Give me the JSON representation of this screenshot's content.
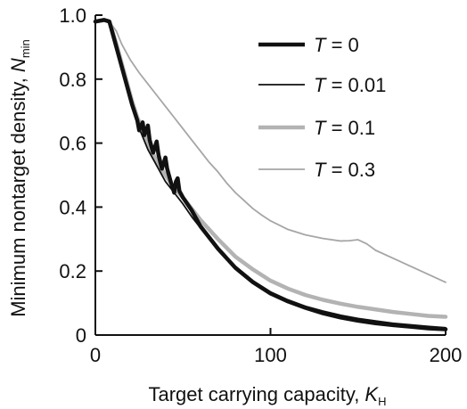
{
  "chart_data": {
    "type": "line",
    "x_axis": {
      "label_text": "Target carrying capacity, ",
      "label_var": "K",
      "label_sub": "H",
      "range": [
        0,
        200
      ],
      "ticks": [
        0,
        100,
        200
      ],
      "tick_labels": [
        "0",
        "100",
        "200"
      ]
    },
    "y_axis": {
      "label_text": "Minimum nontarget density, ",
      "label_var": "N",
      "label_sub": "min",
      "range": [
        0,
        1.0
      ],
      "ticks": [
        0,
        0.2,
        0.4,
        0.6,
        0.8,
        1.0
      ],
      "tick_labels": [
        "0",
        "0.2",
        "0.4",
        "0.6",
        "0.8",
        "1.0"
      ]
    },
    "grid": false,
    "legend_position": "top-right",
    "series": [
      {
        "name": "T = 0",
        "legend_var": "T",
        "legend_value": "= 0",
        "color": "#111111",
        "width": "thick",
        "points": [
          [
            0,
            0.98
          ],
          [
            5,
            0.985
          ],
          [
            8,
            0.98
          ],
          [
            12,
            0.9
          ],
          [
            15,
            0.84
          ],
          [
            18,
            0.78
          ],
          [
            21,
            0.72
          ],
          [
            24,
            0.67
          ],
          [
            25,
            0.64
          ],
          [
            27,
            0.665
          ],
          [
            28,
            0.625
          ],
          [
            30,
            0.655
          ],
          [
            31,
            0.61
          ],
          [
            33,
            0.57
          ],
          [
            35,
            0.605
          ],
          [
            36,
            0.565
          ],
          [
            38,
            0.52
          ],
          [
            40,
            0.555
          ],
          [
            41,
            0.52
          ],
          [
            43,
            0.48
          ],
          [
            45,
            0.445
          ],
          [
            46,
            0.48
          ],
          [
            47,
            0.49
          ],
          [
            48,
            0.45
          ],
          [
            50,
            0.43
          ],
          [
            55,
            0.39
          ],
          [
            60,
            0.34
          ],
          [
            70,
            0.27
          ],
          [
            80,
            0.21
          ],
          [
            90,
            0.165
          ],
          [
            100,
            0.13
          ],
          [
            110,
            0.105
          ],
          [
            120,
            0.085
          ],
          [
            130,
            0.068
          ],
          [
            140,
            0.055
          ],
          [
            150,
            0.045
          ],
          [
            160,
            0.037
          ],
          [
            170,
            0.031
          ],
          [
            180,
            0.026
          ],
          [
            190,
            0.021
          ],
          [
            200,
            0.018
          ]
        ]
      },
      {
        "name": "T = 0.01",
        "legend_var": "T",
        "legend_value": "= 0.01",
        "color": "#111111",
        "width": "thin",
        "points": [
          [
            0,
            0.98
          ],
          [
            5,
            0.985
          ],
          [
            8,
            0.98
          ],
          [
            12,
            0.9
          ],
          [
            15,
            0.84
          ],
          [
            18,
            0.78
          ],
          [
            21,
            0.72
          ],
          [
            24,
            0.66
          ],
          [
            27,
            0.62
          ],
          [
            30,
            0.58
          ],
          [
            33,
            0.55
          ],
          [
            36,
            0.52
          ],
          [
            40,
            0.48
          ],
          [
            45,
            0.445
          ],
          [
            50,
            0.41
          ],
          [
            55,
            0.37
          ],
          [
            60,
            0.335
          ],
          [
            70,
            0.27
          ],
          [
            80,
            0.215
          ],
          [
            90,
            0.17
          ],
          [
            100,
            0.135
          ],
          [
            110,
            0.11
          ],
          [
            120,
            0.09
          ],
          [
            130,
            0.075
          ],
          [
            140,
            0.062
          ],
          [
            150,
            0.052
          ],
          [
            160,
            0.044
          ],
          [
            170,
            0.037
          ],
          [
            180,
            0.032
          ],
          [
            190,
            0.027
          ],
          [
            200,
            0.023
          ]
        ]
      },
      {
        "name": "T = 0.1",
        "legend_var": "T",
        "legend_value": "= 0.1",
        "color": "#b3b3b3",
        "width": "thick",
        "points": [
          [
            0,
            0.98
          ],
          [
            5,
            0.985
          ],
          [
            8,
            0.98
          ],
          [
            12,
            0.91
          ],
          [
            15,
            0.85
          ],
          [
            18,
            0.79
          ],
          [
            21,
            0.73
          ],
          [
            24,
            0.68
          ],
          [
            27,
            0.64
          ],
          [
            30,
            0.6
          ],
          [
            33,
            0.565
          ],
          [
            36,
            0.535
          ],
          [
            40,
            0.5
          ],
          [
            45,
            0.46
          ],
          [
            50,
            0.43
          ],
          [
            55,
            0.395
          ],
          [
            60,
            0.36
          ],
          [
            70,
            0.3
          ],
          [
            80,
            0.245
          ],
          [
            90,
            0.205
          ],
          [
            100,
            0.17
          ],
          [
            110,
            0.145
          ],
          [
            120,
            0.125
          ],
          [
            130,
            0.11
          ],
          [
            140,
            0.098
          ],
          [
            150,
            0.088
          ],
          [
            160,
            0.08
          ],
          [
            170,
            0.072
          ],
          [
            180,
            0.066
          ],
          [
            190,
            0.06
          ],
          [
            200,
            0.057
          ]
        ]
      },
      {
        "name": "T = 0.3",
        "legend_var": "T",
        "legend_value": "= 0.3",
        "color": "#a6a6a6",
        "width": "thin",
        "points": [
          [
            0,
            0.98
          ],
          [
            5,
            0.985
          ],
          [
            8,
            0.98
          ],
          [
            12,
            0.95
          ],
          [
            15,
            0.91
          ],
          [
            20,
            0.86
          ],
          [
            25,
            0.82
          ],
          [
            30,
            0.785
          ],
          [
            35,
            0.75
          ],
          [
            40,
            0.715
          ],
          [
            45,
            0.68
          ],
          [
            50,
            0.645
          ],
          [
            55,
            0.61
          ],
          [
            60,
            0.575
          ],
          [
            65,
            0.54
          ],
          [
            70,
            0.51
          ],
          [
            75,
            0.475
          ],
          [
            80,
            0.445
          ],
          [
            85,
            0.42
          ],
          [
            90,
            0.395
          ],
          [
            95,
            0.375
          ],
          [
            100,
            0.357
          ],
          [
            110,
            0.33
          ],
          [
            120,
            0.313
          ],
          [
            130,
            0.302
          ],
          [
            140,
            0.294
          ],
          [
            145,
            0.295
          ],
          [
            150,
            0.298
          ],
          [
            155,
            0.285
          ],
          [
            160,
            0.265
          ],
          [
            170,
            0.24
          ],
          [
            180,
            0.215
          ],
          [
            190,
            0.19
          ],
          [
            200,
            0.165
          ]
        ]
      }
    ]
  }
}
